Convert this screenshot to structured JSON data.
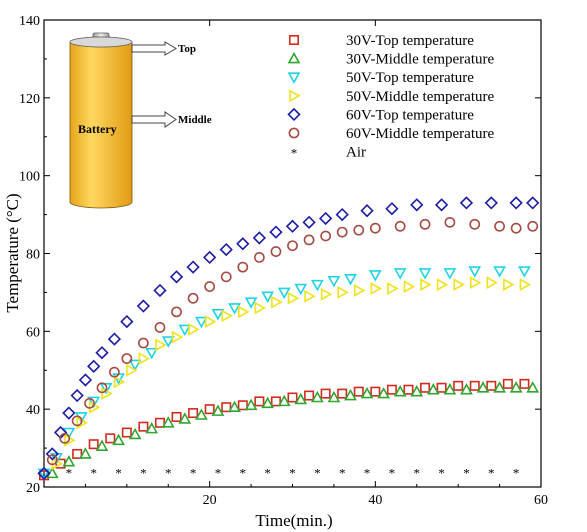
{
  "chart_data": {
    "type": "scatter",
    "title": "",
    "xlabel": "Time(min.)",
    "ylabel": "Temperature (°C)",
    "xlim": [
      0,
      60
    ],
    "ylim": [
      20,
      140
    ],
    "xticks": [
      20,
      40,
      60
    ],
    "yticks": [
      20,
      40,
      60,
      80,
      100,
      120,
      140
    ],
    "grid": false,
    "legend_position": "top-right",
    "series": [
      {
        "name": "30V-Top temperature",
        "marker": "square",
        "color": "#d42a1e",
        "x": [
          0,
          2,
          4,
          6,
          8,
          10,
          12,
          14,
          16,
          18,
          20,
          22,
          24,
          26,
          28,
          30,
          32,
          34,
          36,
          38,
          40,
          42,
          44,
          46,
          48,
          50,
          52,
          54,
          56,
          58
        ],
        "y": [
          23,
          26,
          28.5,
          31,
          32.5,
          34,
          35.5,
          36.5,
          38,
          39,
          40,
          40.5,
          41,
          42,
          42,
          43,
          43.5,
          44,
          44,
          44.5,
          44.5,
          45,
          45,
          45.5,
          45.5,
          46,
          46,
          46,
          46.5,
          46.5
        ]
      },
      {
        "name": "30V-Middle temperature",
        "marker": "triangle-up",
        "color": "#2fa62f",
        "x": [
          1,
          3,
          5,
          7,
          9,
          11,
          13,
          15,
          17,
          19,
          21,
          23,
          25,
          27,
          29,
          31,
          33,
          35,
          37,
          39,
          41,
          43,
          45,
          47,
          49,
          51,
          53,
          55,
          57,
          59
        ],
        "y": [
          23.5,
          26.5,
          28.5,
          30.5,
          32,
          33.5,
          35,
          36.5,
          37.5,
          38.5,
          39.5,
          40.5,
          41,
          41.5,
          42,
          42.5,
          43,
          43,
          43.5,
          44,
          44,
          44.5,
          44.5,
          45,
          45,
          45,
          45.5,
          45.5,
          45.5,
          45.5
        ]
      },
      {
        "name": "50V-Top temperature",
        "marker": "triangle-down",
        "color": "#1fd3e6",
        "x": [
          0,
          1.5,
          3,
          4.5,
          6,
          7.5,
          9,
          11,
          13,
          15,
          17,
          19,
          21,
          23,
          25,
          27,
          29,
          31,
          33,
          35,
          37,
          40,
          43,
          46,
          49,
          52,
          55,
          58
        ],
        "y": [
          23.5,
          27.5,
          34,
          38,
          42,
          45.5,
          48,
          51.5,
          54.5,
          57.5,
          60.5,
          62.5,
          64.5,
          66,
          67.5,
          69,
          70,
          71,
          72,
          73,
          73.5,
          74.5,
          75,
          75,
          75,
          75.5,
          75.5,
          75.5
        ]
      },
      {
        "name": "50V-Middle temperature",
        "marker": "triangle-right",
        "color": "#efe31a",
        "x": [
          1.5,
          3,
          4.5,
          6,
          7.5,
          9,
          10.5,
          12,
          14,
          16,
          18,
          20,
          22,
          24,
          26,
          28,
          30,
          32,
          34,
          36,
          38,
          40,
          42,
          44,
          46,
          48,
          50,
          52,
          54,
          56,
          58
        ],
        "y": [
          26,
          32,
          36.5,
          40.5,
          44,
          47,
          50,
          53,
          56.5,
          58.5,
          60.5,
          62.5,
          64,
          65,
          66,
          67.5,
          68.5,
          69,
          69.5,
          70,
          70.5,
          71,
          71,
          71.5,
          72,
          72,
          72,
          72.5,
          72.5,
          72,
          72
        ]
      },
      {
        "name": "60V-Top temperature",
        "marker": "diamond",
        "color": "#1b1ba6",
        "x": [
          0,
          1,
          2,
          3,
          4,
          5,
          6,
          7,
          8.5,
          10,
          12,
          14,
          16,
          18,
          20,
          22,
          24,
          26,
          28,
          30,
          32,
          34,
          36,
          39,
          42,
          45,
          48,
          51,
          54,
          57,
          59
        ],
        "y": [
          23.5,
          28.5,
          34,
          39,
          43.5,
          47.5,
          51,
          54.5,
          58,
          62.5,
          66.5,
          70.5,
          74,
          76.5,
          79,
          81,
          82.5,
          84,
          85.5,
          87,
          88,
          89,
          90,
          91,
          91.5,
          92.5,
          92.5,
          93,
          93,
          93,
          93
        ]
      },
      {
        "name": "60V-Middle temperature",
        "marker": "circle",
        "color": "#a84a42",
        "x": [
          1,
          2.5,
          4,
          5.5,
          7,
          8.5,
          10,
          12,
          14,
          16,
          18,
          20,
          22,
          24,
          26,
          28,
          30,
          32,
          34,
          36,
          38,
          40,
          43,
          46,
          49,
          52,
          55,
          57,
          59
        ],
        "y": [
          27,
          32.5,
          37,
          41.5,
          45.5,
          49.5,
          53,
          57,
          61,
          65,
          68.5,
          71.5,
          74,
          76.5,
          79,
          80.5,
          82,
          83.5,
          84.5,
          85.5,
          86,
          86.5,
          87,
          87.5,
          88,
          87.5,
          87,
          86.5,
          87
        ]
      },
      {
        "name": "Air",
        "marker": "star",
        "color": "#000000",
        "x": [
          3,
          6,
          9,
          12,
          15,
          18,
          21,
          24,
          27,
          30,
          33,
          36,
          39,
          42,
          45,
          48,
          51,
          54,
          57
        ],
        "y": [
          24,
          24,
          24,
          24,
          24,
          24,
          24,
          24,
          24,
          24,
          24,
          24,
          24,
          24,
          24,
          24,
          24,
          24,
          24
        ]
      }
    ]
  },
  "diagram": {
    "battery_label": "Battery",
    "top_label": "Top",
    "middle_label": "Middle"
  }
}
